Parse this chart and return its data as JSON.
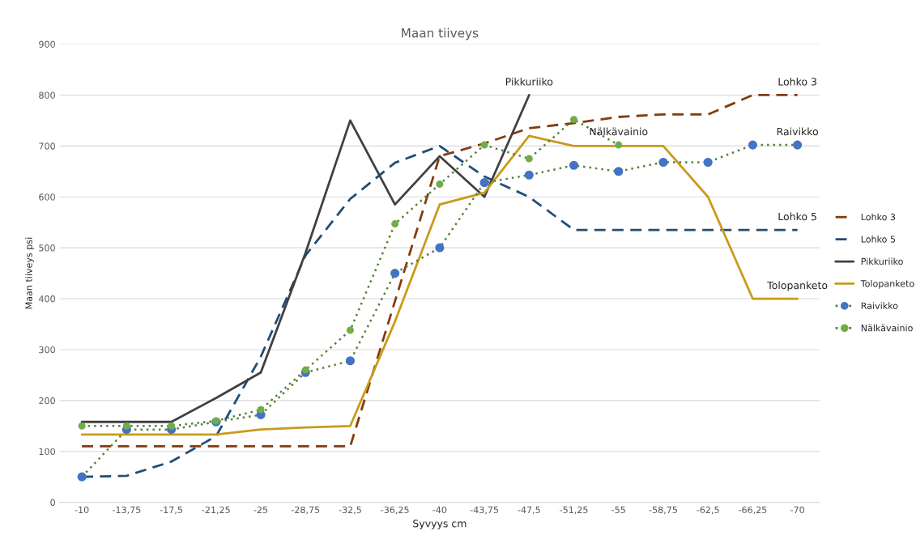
{
  "chart_data": {
    "type": "line",
    "title": "Maan tiiveys",
    "xlabel": "Syvyys cm",
    "ylabel": "Maan tiiveys psi",
    "categories": [
      "-10",
      "-13,75",
      "-17,5",
      "-21,25",
      "-25",
      "-28,75",
      "-32,5",
      "-36,25",
      "-40",
      "-43,75",
      "-47,5",
      "-51,25",
      "-55",
      "-58,75",
      "-62,5",
      "-66,25",
      "-70"
    ],
    "ylim": [
      0,
      900
    ],
    "yticks": [
      0,
      100,
      200,
      300,
      400,
      500,
      600,
      700,
      800,
      900
    ],
    "grid": "y",
    "legend": "right",
    "series": [
      {
        "name": "Lohko 3",
        "color": "#843c0c",
        "line_style": "dashed",
        "marker": "none",
        "values": [
          110,
          110,
          110,
          110,
          110,
          110,
          110,
          395,
          680,
          705,
          735,
          745,
          757,
          762,
          762,
          800,
          800
        ]
      },
      {
        "name": "Lohko 5",
        "color": "#1f4e79",
        "line_style": "dashed",
        "marker": "none",
        "values": [
          50,
          52,
          80,
          130,
          286,
          485,
          596,
          667,
          700,
          640,
          600,
          535,
          535,
          535,
          535,
          535,
          535
        ]
      },
      {
        "name": "Pikkuriiko",
        "color": "#404040",
        "line_style": "solid",
        "marker": "none",
        "values": [
          158,
          158,
          158,
          205,
          255,
          490,
          750,
          585,
          680,
          600,
          800,
          null,
          null,
          null,
          null,
          null,
          null
        ]
      },
      {
        "name": "Tolopanketo",
        "color": "#c99a1a",
        "line_style": "solid",
        "marker": "none",
        "values": [
          133,
          133,
          133,
          133,
          143,
          147,
          150,
          355,
          585,
          608,
          720,
          700,
          700,
          700,
          600,
          400,
          400
        ]
      },
      {
        "name": "Raivikko",
        "color": "#548235",
        "line_style": "dotted",
        "marker": "circle",
        "colors": [
          "#4472c4",
          "#4472c4",
          "#4472c4",
          "#4472c4",
          "#4472c4",
          "#4472c4",
          "#4472c4",
          "#4472c4",
          "#4472c4",
          "#4472c4",
          "#4472c4",
          "#4472c4",
          "#4472c4",
          "#4472c4",
          "#4472c4",
          "#4472c4",
          "#4472c4"
        ],
        "values": [
          50,
          143,
          143,
          158,
          172,
          255,
          278,
          450,
          500,
          628,
          643,
          662,
          650,
          668,
          668,
          702,
          702
        ]
      },
      {
        "name": "Nälkävainio",
        "color": "#548235",
        "line_style": "dotted",
        "marker": "circle",
        "colors": [
          "#70ad47",
          "#70ad47",
          "#70ad47",
          "#70ad47",
          "#70ad47",
          "#70ad47",
          "#70ad47",
          "#70ad47",
          "#70ad47",
          "#70ad47",
          "#70ad47",
          "#70ad47",
          "#70ad47",
          null,
          null,
          null,
          null
        ],
        "values": [
          150,
          150,
          150,
          160,
          182,
          260,
          338,
          547,
          625,
          702,
          675,
          752,
          702,
          null,
          null,
          null,
          null
        ]
      }
    ],
    "annotations": [
      {
        "text": "Pikkuriiko",
        "x": "-47,5",
        "y": 800
      },
      {
        "text": "Lohko 3",
        "x": "-70",
        "y": 800
      },
      {
        "text": "Nälkävainio",
        "x": "-55",
        "y": 702
      },
      {
        "text": "Raivikko",
        "x": "-70",
        "y": 702
      },
      {
        "text": "Lohko 5",
        "x": "-70",
        "y": 535
      },
      {
        "text": "Tolopanketo",
        "x": "-70",
        "y": 400
      }
    ]
  }
}
